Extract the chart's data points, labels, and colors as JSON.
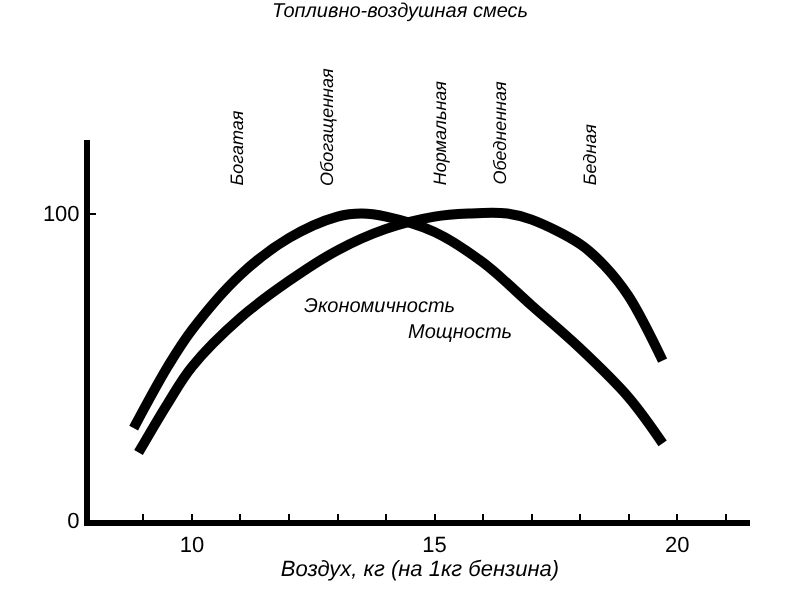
{
  "chart_data": {
    "type": "line",
    "title": "Топливно-воздушная смесь",
    "xlabel": "Воздух, кг (на 1кг бензина)",
    "xlim": [
      7.9,
      21.5
    ],
    "ylim": [
      0,
      124
    ],
    "xticks": [
      {
        "value": 9,
        "label": null
      },
      10,
      {
        "value": 11,
        "label": null
      },
      {
        "value": 12,
        "label": null
      },
      {
        "value": 13,
        "label": null
      },
      {
        "value": 14,
        "label": null
      },
      15,
      {
        "value": 16,
        "label": null
      },
      {
        "value": 17,
        "label": null
      },
      {
        "value": 18,
        "label": null
      },
      {
        "value": 19,
        "label": null
      },
      20,
      {
        "value": 21,
        "label": null
      }
    ],
    "yticks": [
      0,
      100
    ],
    "series": [
      {
        "name": "Мощность",
        "color": "#000000",
        "x": [
          8.8,
          9.5,
          10,
          11,
          12,
          13,
          13.5,
          14,
          15,
          16,
          17,
          18,
          19,
          19.7
        ],
        "values": [
          30,
          50,
          62,
          80,
          92,
          99,
          100,
          99,
          94,
          84,
          70,
          56,
          40,
          25
        ]
      },
      {
        "name": "Экономичность",
        "color": "#000000",
        "x": [
          8.9,
          9.5,
          10,
          11,
          12,
          13,
          14,
          15,
          15.7,
          16.5,
          17,
          18,
          18.5,
          19,
          19.7
        ],
        "values": [
          22,
          38,
          50,
          66,
          78,
          88,
          95,
          99,
          100,
          100,
          98,
          90,
          83,
          73,
          52
        ]
      }
    ],
    "annotations": [
      "Богатая",
      "Обогащенная",
      "Нормальная",
      "Обедненная",
      "Бедная"
    ],
    "legend": false,
    "marker": "none",
    "line_style": "solid"
  }
}
